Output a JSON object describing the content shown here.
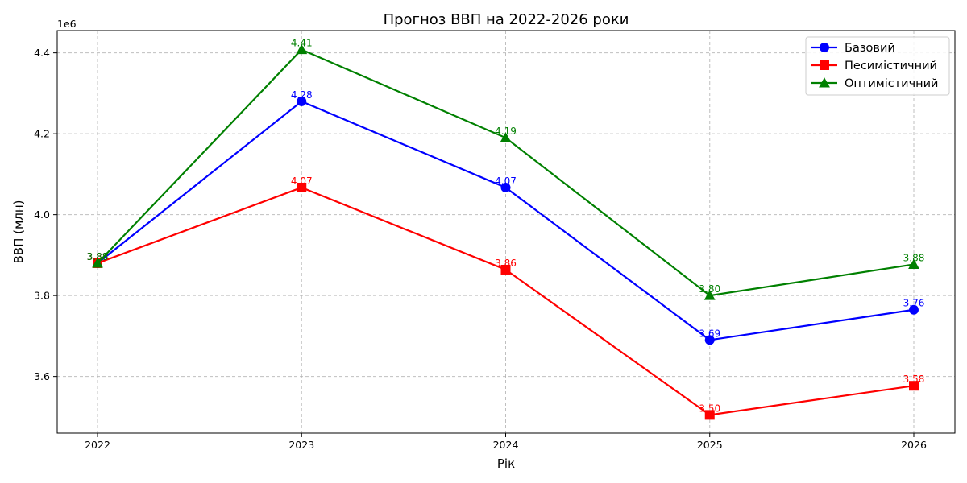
{
  "chart_data": {
    "type": "line",
    "title": "Прогноз ВВП на 2022-2026 роки",
    "xlabel": "Рік",
    "ylabel": "ВВП (млн)",
    "offset_label": "1e6",
    "categories": [
      "2022",
      "2023",
      "2024",
      "2025",
      "2026"
    ],
    "yticks": [
      "3.6",
      "3.8",
      "4.0",
      "4.2",
      "4.4"
    ],
    "ylim": [
      3460000,
      4455000
    ],
    "grid": true,
    "legend_position": "top-right",
    "series": [
      {
        "name": "Базовий",
        "color": "#0000ff",
        "marker": "circle",
        "values": [
          3880000,
          4280000,
          4067000,
          3690000,
          3765000
        ],
        "labels": [
          "3.88",
          "4.28",
          "4.07",
          "3.69",
          "3.76"
        ]
      },
      {
        "name": "Песимістичний",
        "color": "#ff0000",
        "marker": "square",
        "values": [
          3880000,
          4067000,
          3864000,
          3505000,
          3577000
        ],
        "labels": [
          "3.88",
          "4.07",
          "3.86",
          "3.50",
          "3.58"
        ]
      },
      {
        "name": "Оптимістичний",
        "color": "#008000",
        "marker": "triangle",
        "values": [
          3880000,
          4408000,
          4190000,
          3800000,
          3877000
        ],
        "labels": [
          "3.88",
          "4.41",
          "4.19",
          "3.80",
          "3.88"
        ]
      }
    ]
  }
}
